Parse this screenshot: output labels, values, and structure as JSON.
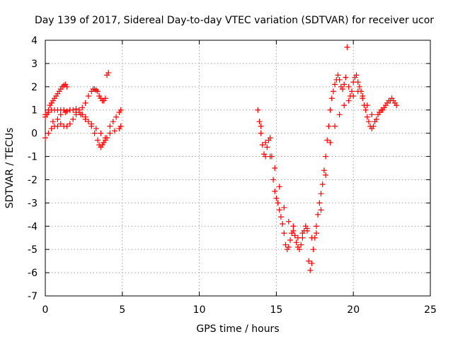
{
  "chart_data": {
    "type": "scatter",
    "title": "Day 139 of 2017, Sidereal Day-to-day VTEC variation (SDTVAR) for receiver ucor",
    "xlabel": "GPS time / hours",
    "ylabel": "SDTVAR / TECUs",
    "xlim": [
      0,
      25
    ],
    "ylim": [
      -7,
      4
    ],
    "xticks": [
      0,
      5,
      10,
      15,
      20,
      25
    ],
    "yticks": [
      -7,
      -6,
      -5,
      -4,
      -3,
      -2,
      -1,
      0,
      1,
      2,
      3,
      4
    ],
    "grid": true,
    "legend": "none",
    "marker": "plus",
    "color": "#ff0000",
    "series": [
      {
        "x": [
          0.0,
          0.1,
          0.2,
          0.3,
          0.4,
          0.5,
          0.6,
          0.7,
          0.8,
          0.9,
          1.0,
          1.1,
          1.2,
          1.3,
          1.4
        ],
        "y": [
          0.7,
          0.8,
          1.0,
          1.2,
          1.3,
          1.4,
          1.5,
          1.6,
          1.7,
          1.8,
          1.9,
          2.0,
          2.05,
          2.1,
          2.0
        ]
      },
      {
        "x": [
          0.0,
          0.2,
          0.4,
          0.6,
          0.8,
          1.0,
          1.2,
          1.4,
          1.6,
          1.8,
          2.0,
          2.2,
          2.4,
          2.6,
          2.8,
          3.0,
          3.1,
          3.2,
          3.3,
          3.4,
          3.5,
          3.6,
          3.7,
          3.8,
          3.9,
          4.0,
          4.1
        ],
        "y": [
          0.8,
          0.9,
          1.0,
          1.0,
          1.0,
          1.0,
          1.0,
          0.95,
          1.0,
          1.0,
          1.05,
          1.0,
          1.1,
          1.3,
          1.6,
          1.8,
          1.9,
          1.9,
          1.85,
          1.8,
          1.6,
          1.5,
          1.4,
          1.4,
          1.5,
          2.5,
          2.6
        ]
      },
      {
        "x": [
          0.0,
          0.2,
          0.4,
          0.6,
          0.8,
          1.0,
          1.2,
          1.4,
          1.6,
          1.8,
          2.0,
          2.2,
          2.4,
          2.6,
          2.8,
          3.0,
          3.2,
          3.4,
          3.5,
          3.6,
          3.7,
          3.8,
          3.9,
          4.0,
          4.2,
          4.4,
          4.6,
          4.8,
          4.9
        ],
        "y": [
          -0.2,
          0.0,
          0.2,
          0.3,
          0.3,
          0.4,
          0.3,
          0.3,
          0.4,
          0.6,
          0.8,
          0.9,
          0.8,
          0.7,
          0.5,
          0.3,
          0.0,
          -0.3,
          -0.5,
          -0.6,
          -0.5,
          -0.4,
          -0.3,
          -0.2,
          0.3,
          0.5,
          0.7,
          0.9,
          1.0
        ]
      },
      {
        "x": [
          0.5,
          0.8,
          1.0,
          1.3,
          1.6,
          2.0,
          2.3,
          2.6,
          3.0,
          3.3,
          3.6,
          3.9,
          4.2,
          4.5,
          4.8,
          4.9
        ],
        "y": [
          0.5,
          0.6,
          0.8,
          0.9,
          1.0,
          0.9,
          0.8,
          0.6,
          0.4,
          0.2,
          0.0,
          -0.2,
          0.0,
          0.1,
          0.2,
          0.3
        ]
      },
      {
        "x": [
          13.8,
          13.9,
          14.0,
          14.1,
          14.2,
          14.3,
          14.4,
          14.5,
          14.6,
          14.7,
          14.8,
          14.9,
          15.0,
          15.1,
          15.2,
          15.3,
          15.4,
          15.5,
          15.6,
          15.7,
          15.8,
          15.9,
          16.0,
          16.1,
          16.2,
          16.3,
          16.4,
          16.5,
          16.6,
          16.7,
          16.8,
          16.9,
          17.0,
          17.1,
          17.2,
          17.3,
          17.4,
          17.5,
          17.6,
          17.7,
          17.8,
          17.9,
          18.0,
          18.1,
          18.2,
          18.3,
          18.4,
          18.5,
          18.6,
          18.7,
          18.8,
          18.9,
          19.0,
          19.1,
          19.2,
          19.3,
          19.4,
          19.5,
          19.6,
          19.7,
          19.8,
          19.9,
          20.0,
          20.1,
          20.2,
          20.3,
          20.4,
          20.5,
          20.6,
          20.7,
          20.8,
          20.9,
          21.0,
          21.1,
          21.2,
          21.3,
          21.4,
          21.5,
          21.6,
          21.7,
          21.8,
          21.9,
          22.0,
          22.1,
          22.2,
          22.3,
          22.4,
          22.5,
          22.6,
          22.7,
          22.8
        ],
        "y": [
          1.0,
          0.5,
          0.0,
          -0.5,
          -0.9,
          -1.0,
          -0.6,
          -0.3,
          -0.2,
          -1.0,
          -2.0,
          -2.5,
          -2.8,
          -3.0,
          -3.3,
          -3.6,
          -3.9,
          -4.3,
          -4.8,
          -5.0,
          -4.9,
          -4.6,
          -4.3,
          -4.0,
          -4.4,
          -4.7,
          -4.9,
          -5.0,
          -4.8,
          -4.5,
          -4.2,
          -4.0,
          -4.2,
          -5.5,
          -5.9,
          -5.6,
          -5.0,
          -4.5,
          -4.0,
          -3.5,
          -3.0,
          -2.6,
          -2.2,
          -1.6,
          -1.0,
          -0.3,
          0.3,
          1.0,
          1.5,
          1.8,
          2.1,
          2.3,
          2.5,
          2.3,
          2.0,
          1.9,
          2.1,
          2.4,
          3.7,
          2.0,
          1.6,
          1.8,
          2.2,
          2.4,
          2.5,
          2.2,
          2.0,
          1.8,
          1.5,
          1.2,
          1.0,
          0.7,
          0.5,
          0.3,
          0.2,
          0.3,
          0.5,
          0.6,
          0.8,
          0.9,
          1.0,
          1.0,
          1.1,
          1.2,
          1.3,
          1.4,
          1.4,
          1.5,
          1.4,
          1.3,
          1.2
        ]
      },
      {
        "x": [
          14.0,
          14.3,
          14.6,
          14.9,
          15.2,
          15.5,
          15.8,
          16.1,
          16.4,
          16.7,
          17.0,
          17.3,
          17.6,
          17.9,
          18.2,
          18.5,
          18.8,
          19.1,
          19.4,
          19.7,
          20.0,
          20.3,
          20.6,
          20.9,
          21.2
        ],
        "y": [
          0.3,
          -0.4,
          -1.0,
          -1.5,
          -2.3,
          -3.2,
          -3.8,
          -4.2,
          -4.5,
          -4.3,
          -4.1,
          -4.5,
          -4.3,
          -3.3,
          -1.8,
          -0.4,
          0.3,
          0.8,
          1.2,
          1.4,
          1.6,
          1.8,
          1.6,
          1.2,
          0.8
        ]
      }
    ]
  }
}
